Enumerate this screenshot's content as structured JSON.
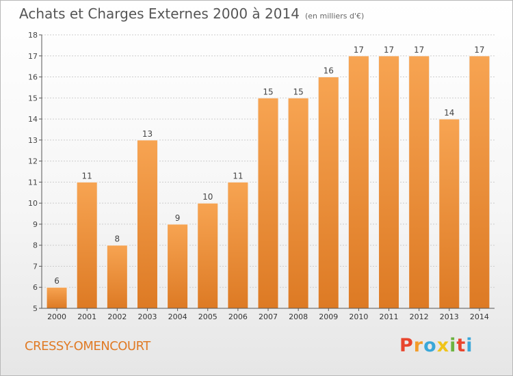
{
  "title": "Achats et Charges Externes 2000 à 2014",
  "subtitle": "(en milliers d'€)",
  "commune": "CRESSY-OMENCOURT",
  "logo": "Proxiti",
  "colors": {
    "bar": "#f39a45",
    "bar_dark": "#e07a24",
    "axis": "#555555",
    "grid": "#cccccc"
  },
  "chart_data": {
    "type": "bar",
    "categories": [
      "2000",
      "2001",
      "2002",
      "2003",
      "2004",
      "2005",
      "2006",
      "2007",
      "2008",
      "2009",
      "2010",
      "2011",
      "2012",
      "2013",
      "2014"
    ],
    "values": [
      6,
      11,
      8,
      13,
      9,
      10,
      11,
      15,
      15,
      16,
      17,
      17,
      17,
      14,
      17
    ],
    "ylim": [
      5,
      18
    ],
    "yticks": [
      5,
      6,
      7,
      8,
      9,
      10,
      11,
      12,
      13,
      14,
      15,
      16,
      17,
      18
    ],
    "grid": true,
    "data_labels": true
  }
}
